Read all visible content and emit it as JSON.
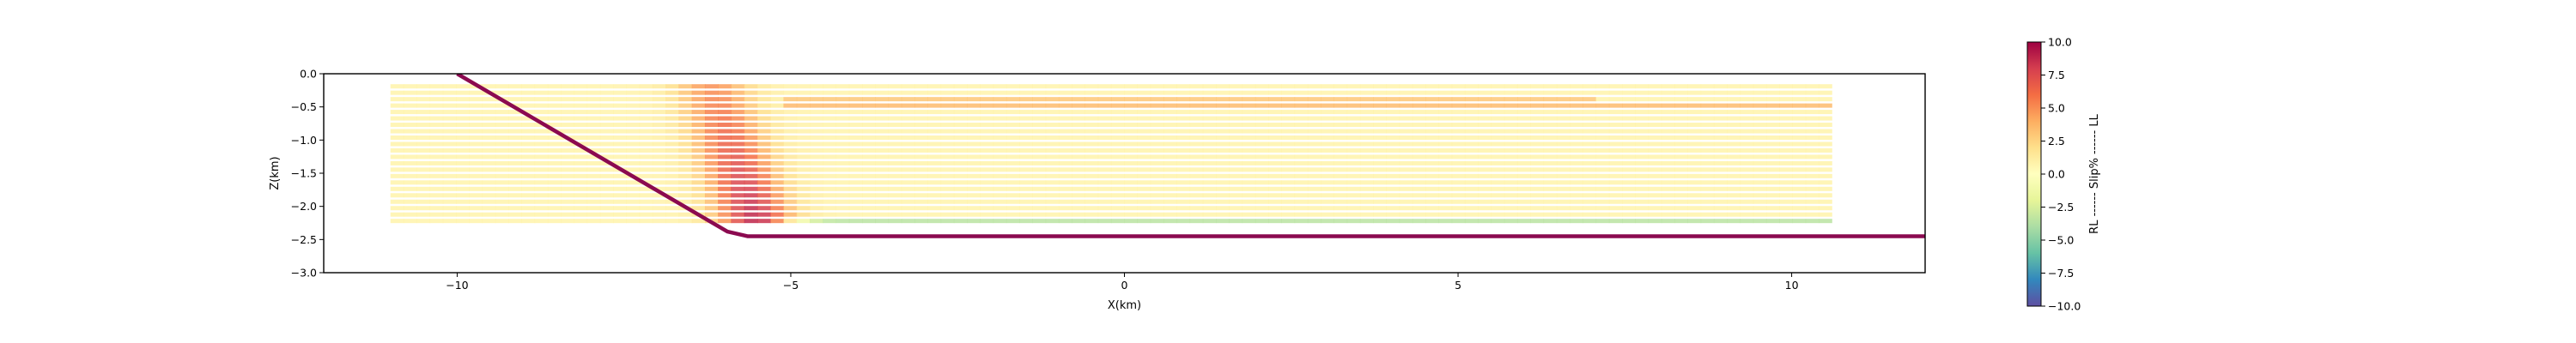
{
  "chart_data": {
    "type": "heatmap",
    "xlabel": "X(km)",
    "ylabel": "Z(km)",
    "xlim": [
      -12.0,
      12.0
    ],
    "ylim": [
      -3.0,
      0.0
    ],
    "xticks": [
      -10,
      -5,
      0,
      5,
      10
    ],
    "xtick_labels": [
      "−10",
      "−5",
      "0",
      "5",
      "10"
    ],
    "yticks": [
      0.0,
      -0.5,
      -1.0,
      -1.5,
      -2.0,
      -2.5,
      -3.0
    ],
    "ytick_labels": [
      "0.0",
      "−0.5",
      "−1.0",
      "−1.5",
      "−2.0",
      "−2.5",
      "−3.0"
    ],
    "grid": false,
    "fault": {
      "color": "#8b0a50",
      "points": [
        [
          -10.0,
          0.0
        ],
        [
          -5.95,
          -2.38
        ],
        [
          -5.65,
          -2.45
        ],
        [
          12.0,
          -2.45
        ]
      ]
    },
    "slip_layers": {
      "x_range": [
        -11.0,
        10.6
      ],
      "top_z": -0.19,
      "bottom_z": -2.22,
      "count": 22,
      "band_x": [
        -6.5,
        -5.2
      ],
      "band_slip": 9.0,
      "background_slip": 0.8,
      "notable_layers": [
        {
          "z": -0.38,
          "slip": 3.0,
          "x_from": -5.2,
          "x_to": 7.0
        },
        {
          "z": -0.48,
          "slip": 3.5,
          "x_from": -5.2,
          "x_to": 10.6
        },
        {
          "z": -2.19,
          "slip": -3.5,
          "x_from": -5.5,
          "x_to": 10.6
        }
      ]
    },
    "colorbar": {
      "cmap": "Spectral_r",
      "vmin": -10.0,
      "vmax": 10.0,
      "ticks": [
        10.0,
        7.5,
        5.0,
        2.5,
        0.0,
        -2.5,
        -5.0,
        -7.5,
        -10.0
      ],
      "tick_labels": [
        "10.0",
        "7.5",
        "5.0",
        "2.5",
        "0.0",
        "−2.5",
        "−5.0",
        "−7.5",
        "−10.0"
      ],
      "label": "RL ------ Slip% ------ LL"
    }
  }
}
